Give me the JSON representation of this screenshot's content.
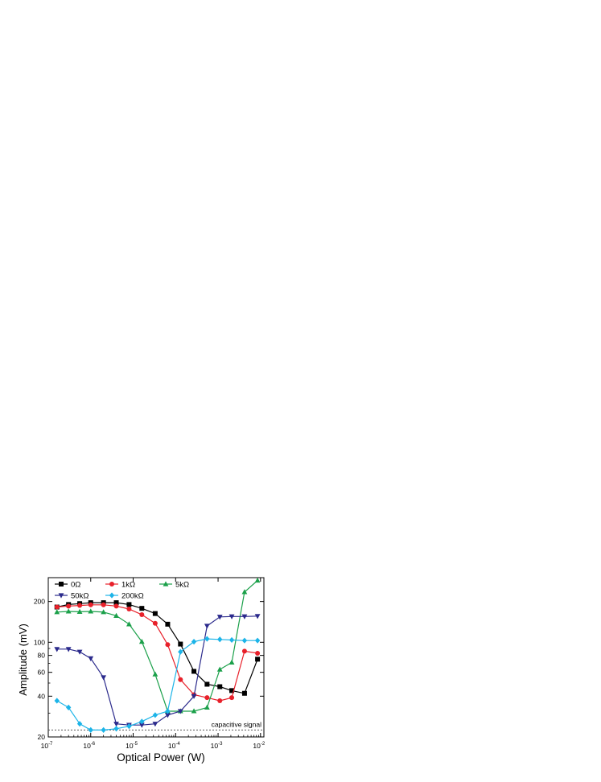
{
  "chart_data": {
    "type": "line",
    "xlabel": "Optical Power (W)",
    "ylabel": "Amplitude (mV)",
    "xscale": "log",
    "yscale": "log",
    "xlim": [
      1e-07,
      0.012
    ],
    "ylim": [
      20,
      300
    ],
    "x_ticks": [
      {
        "value": 1e-07,
        "base": "10",
        "exp": "-7"
      },
      {
        "value": 1e-06,
        "base": "10",
        "exp": "-6"
      },
      {
        "value": 1e-05,
        "base": "10",
        "exp": "-5"
      },
      {
        "value": 0.0001,
        "base": "10",
        "exp": "-4"
      },
      {
        "value": 0.001,
        "base": "10",
        "exp": "-3"
      },
      {
        "value": 0.01,
        "base": "10",
        "exp": "-2"
      }
    ],
    "y_ticks": [
      {
        "value": 20,
        "label": "20"
      },
      {
        "value": 40,
        "label": "40"
      },
      {
        "value": 60,
        "label": "60"
      },
      {
        "value": 80,
        "label": "80"
      },
      {
        "value": 100,
        "label": "100"
      },
      {
        "value": 200,
        "label": "200"
      }
    ],
    "reference_line": {
      "y": 22.5,
      "label": "capacitive signal",
      "color": "#555555"
    },
    "legend_placement": "top-left",
    "grid": false,
    "series": [
      {
        "name": "0Ω",
        "color": "#000000",
        "marker": "square",
        "x": [
          1.6e-07,
          3e-07,
          5.5e-07,
          1e-06,
          2e-06,
          4e-06,
          8e-06,
          1.6e-05,
          3.3e-05,
          6.5e-05,
          0.00013,
          0.00027,
          0.00055,
          0.0011,
          0.0021,
          0.0042,
          0.0085
        ],
        "y": [
          182,
          190,
          193,
          196,
          196,
          196,
          190,
          178,
          163,
          136,
          97,
          61,
          49,
          47,
          44,
          42,
          75
        ]
      },
      {
        "name": "1kΩ",
        "color": "#e8202a",
        "marker": "circle",
        "x": [
          1.6e-07,
          3e-07,
          5.5e-07,
          1e-06,
          2e-06,
          4e-06,
          8e-06,
          1.6e-05,
          3.3e-05,
          6.5e-05,
          0.00013,
          0.00027,
          0.00055,
          0.0011,
          0.0021,
          0.0042,
          0.0085
        ],
        "y": [
          182,
          185,
          187,
          189,
          189,
          185,
          176,
          160,
          138,
          96,
          53,
          41,
          39,
          37,
          39,
          86,
          83
        ]
      },
      {
        "name": "5kΩ",
        "color": "#1ba04a",
        "marker": "triangle-up",
        "x": [
          1.6e-07,
          3e-07,
          5.5e-07,
          1e-06,
          2e-06,
          4e-06,
          8e-06,
          1.6e-05,
          3.3e-05,
          6.5e-05,
          0.00013,
          0.00027,
          0.00055,
          0.0011,
          0.0021,
          0.0042,
          0.0085
        ],
        "y": [
          167,
          169,
          168,
          169,
          167,
          157,
          136,
          101,
          58,
          31,
          31,
          31,
          33,
          63,
          71,
          235,
          286
        ]
      },
      {
        "name": "50kΩ",
        "color": "#2b2a8c",
        "marker": "triangle-down",
        "x": [
          1.6e-07,
          3e-07,
          5.5e-07,
          1e-06,
          2e-06,
          4e-06,
          8e-06,
          1.6e-05,
          3.3e-05,
          6.5e-05,
          0.00013,
          0.00027,
          0.00055,
          0.0011,
          0.0021,
          0.0042,
          0.0085
        ],
        "y": [
          89,
          89,
          85,
          76,
          55,
          25,
          24.5,
          24.5,
          25,
          29,
          31,
          40,
          132,
          154,
          155,
          155,
          156
        ]
      },
      {
        "name": "200kΩ",
        "color": "#1cb4e8",
        "marker": "diamond",
        "x": [
          1.6e-07,
          3e-07,
          5.5e-07,
          1e-06,
          2e-06,
          4e-06,
          8e-06,
          1.6e-05,
          3.3e-05,
          6.5e-05,
          0.00013,
          0.00027,
          0.00055,
          0.0011,
          0.0021,
          0.0042,
          0.0085
        ],
        "y": [
          37,
          33,
          25,
          22.5,
          22.5,
          23,
          24,
          26,
          29,
          31,
          85,
          101,
          106,
          105,
          104,
          103,
          103
        ]
      }
    ]
  }
}
